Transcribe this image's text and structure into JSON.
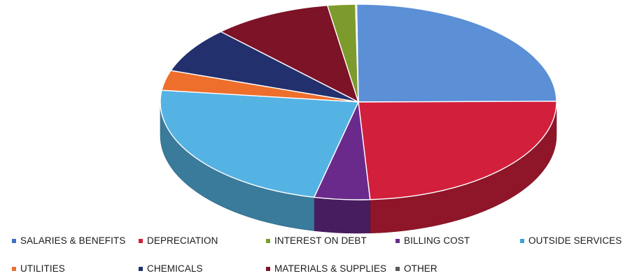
{
  "chart_data": {
    "type": "pie",
    "title": "",
    "three_d": true,
    "legend_position": "bottom",
    "categories": [
      "SALARIES & BENEFITS",
      "DEPRECIATION",
      "BILLING COST",
      "OUTSIDE SERVICES",
      "UTILITIES",
      "CHEMICALS",
      "MATERIALS & SUPPLIES",
      "INTEREST ON DEBT",
      "OTHER"
    ],
    "values": [
      26.5,
      25.6,
      4.8,
      24.7,
      3.5,
      8.0,
      10.3,
      2.4,
      0.1
    ],
    "colors": [
      "#5b8fd6",
      "#d21f3c",
      "#6a2a8c",
      "#55b3e3",
      "#ee6e2c",
      "#22306e",
      "#7d1327",
      "#7c9b2c",
      "#6d6d6d"
    ],
    "legend": [
      {
        "label": "SALARIES & BENEFITS",
        "color": "#3f6fc0"
      },
      {
        "label": "DEPRECIATION",
        "color": "#d21f3c"
      },
      {
        "label": "INTEREST ON DEBT",
        "color": "#7c9b2c"
      },
      {
        "label": "BILLING COST",
        "color": "#6a2a8c"
      },
      {
        "label": "OUTSIDE SERVICES",
        "color": "#3aa3dc"
      },
      {
        "label": "UTILITIES",
        "color": "#ee6e2c"
      },
      {
        "label": "CHEMICALS",
        "color": "#22306e"
      },
      {
        "label": "MATERIALS & SUPPLIES",
        "color": "#7d1327"
      },
      {
        "label": "OTHER",
        "color": "#5a5a5a"
      }
    ]
  }
}
